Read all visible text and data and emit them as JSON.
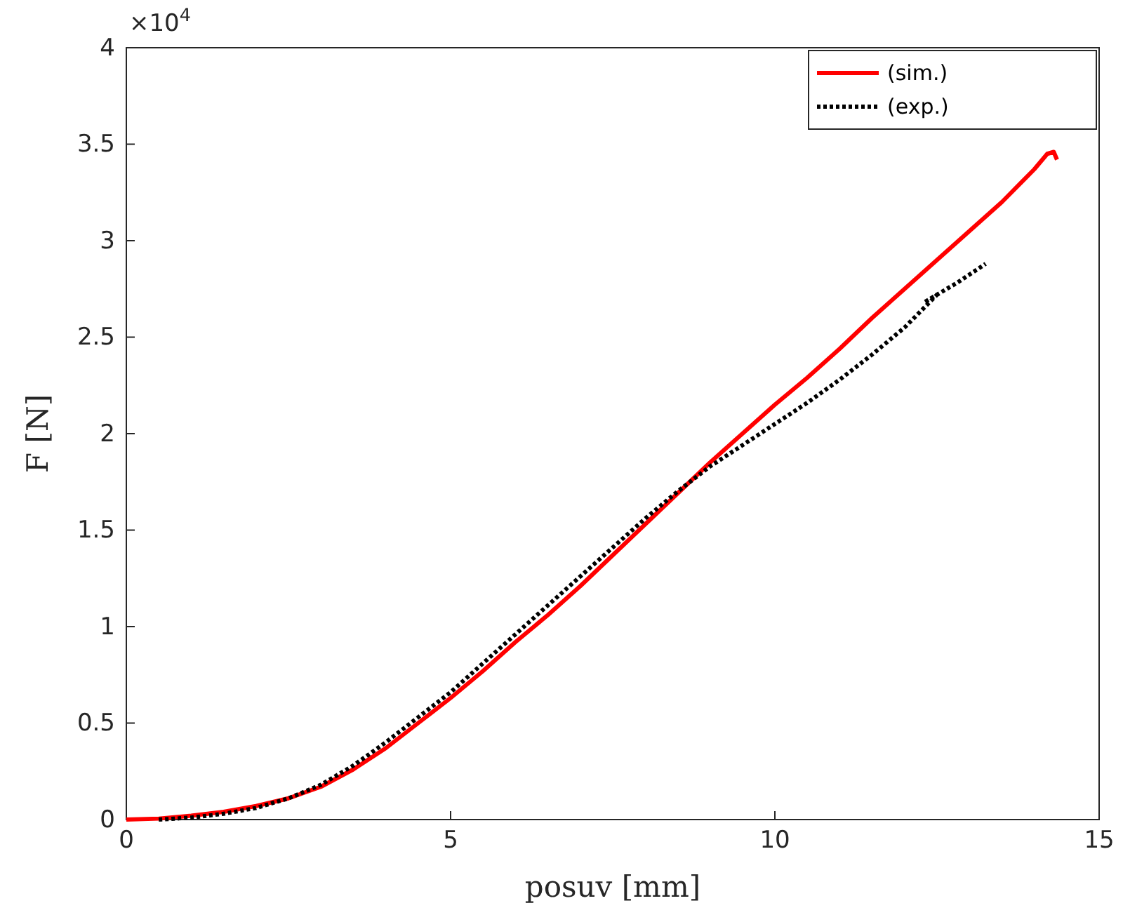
{
  "chart_data": {
    "type": "line",
    "xlabel": "posuv [mm]",
    "ylabel": "F [N]",
    "annotations": [
      "×10$^{4}$"
    ],
    "xlim": [
      0,
      15
    ],
    "xticks": [
      0,
      5,
      10,
      15
    ],
    "ylim": [
      0,
      4
    ],
    "yticks": [
      0,
      0.5,
      1,
      1.5,
      2,
      2.5,
      3,
      3.5,
      4
    ],
    "grid": false,
    "legend": "top right",
    "series": [
      {
        "name": "(sim.)",
        "color": "#ff0000",
        "line_style": "solid",
        "x": [
          0,
          0.5,
          1,
          1.5,
          2,
          2.5,
          3,
          3.5,
          4,
          4.5,
          5,
          5.5,
          6,
          6.5,
          7,
          7.5,
          8,
          8.5,
          9,
          9.5,
          10,
          10.5,
          11,
          11.5,
          12,
          12.5,
          13,
          13.5,
          14,
          14.2,
          14.3,
          14.35
        ],
        "values": [
          0,
          0.005,
          0.02,
          0.04,
          0.07,
          0.11,
          0.17,
          0.26,
          0.37,
          0.5,
          0.63,
          0.77,
          0.92,
          1.06,
          1.21,
          1.37,
          1.53,
          1.69,
          1.85,
          2.0,
          2.15,
          2.29,
          2.44,
          2.6,
          2.75,
          2.9,
          3.05,
          3.2,
          3.37,
          3.45,
          3.46,
          3.42
        ]
      },
      {
        "name": "(exp.)",
        "color": "#000000",
        "line_style": "dotted",
        "x": [
          0.5,
          1,
          1.5,
          2,
          2.5,
          3,
          3.5,
          4,
          4.5,
          5,
          5.5,
          6,
          6.5,
          7,
          7.5,
          8,
          8.5,
          9,
          9.5,
          10,
          10.5,
          11,
          11.5,
          12,
          12.5,
          12.3,
          12.8,
          13.25
        ],
        "values": [
          0,
          0.01,
          0.03,
          0.06,
          0.11,
          0.18,
          0.28,
          0.4,
          0.53,
          0.66,
          0.81,
          0.96,
          1.11,
          1.26,
          1.41,
          1.56,
          1.7,
          1.83,
          1.94,
          2.05,
          2.16,
          2.28,
          2.41,
          2.55,
          2.72,
          2.68,
          2.78,
          2.88
        ]
      }
    ]
  }
}
